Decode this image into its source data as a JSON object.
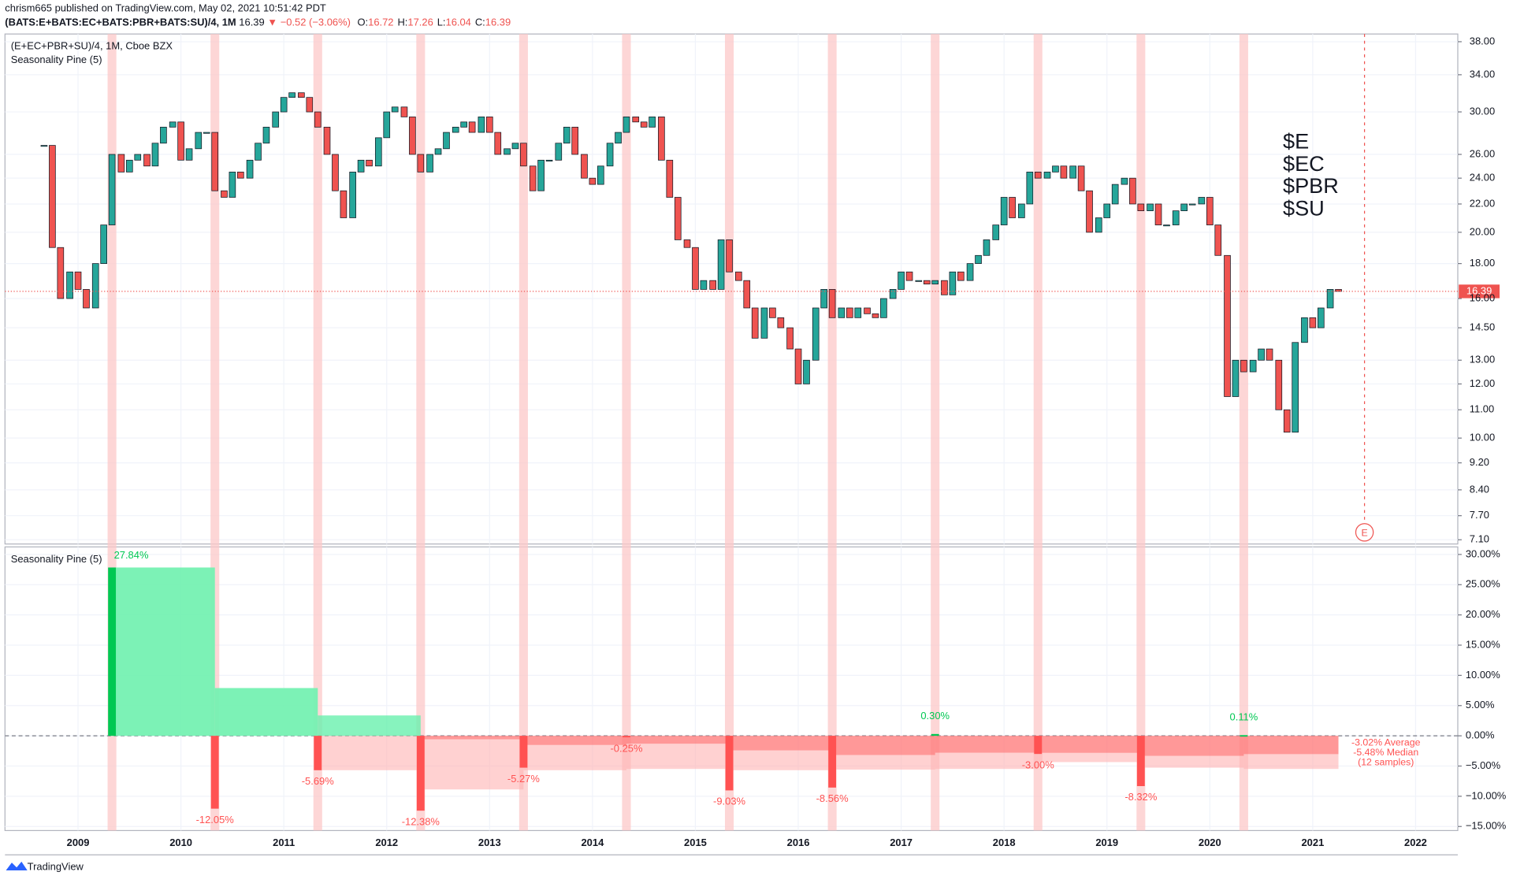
{
  "header": {
    "publisher": "chrism665 published on TradingView.com, May 02, 2021 10:51:42 PDT",
    "symbol": "(BATS:E+BATS:EC+BATS:PBR+BATS:SU)/4, 1M",
    "last": "16.39",
    "change": "▼ −0.52 (−3.06%)",
    "ohlc": [
      {
        "label": "O:",
        "value": "16.72"
      },
      {
        "label": "H:",
        "value": "17.26"
      },
      {
        "label": "L:",
        "value": "16.04"
      },
      {
        "label": "C:",
        "value": "16.39"
      }
    ]
  },
  "chart_data": [
    {
      "type": "candlestick",
      "legend": "(E+EC+PBR+SU)/4, 1M, Cboe BZX",
      "indicator": "Seasonality Pine (5)",
      "log_scale": true,
      "up_color": "#26a69a",
      "down_color": "#ef5350",
      "xlim": [
        2008.29,
        2022.41
      ],
      "ylim": [
        7.0,
        39.0
      ],
      "yticks": [
        {
          "value": 38,
          "label": "38.00"
        },
        {
          "value": 34,
          "label": "34.00"
        },
        {
          "value": 30,
          "label": "30.00"
        },
        {
          "value": 26,
          "label": "26.00"
        },
        {
          "value": 24,
          "label": "24.00"
        },
        {
          "value": 22,
          "label": "22.00"
        },
        {
          "value": 20,
          "label": "20.00"
        },
        {
          "value": 18,
          "label": "18.00"
        },
        {
          "value": 16,
          "label": "16.00"
        },
        {
          "value": 14.5,
          "label": "14.50"
        },
        {
          "value": 13,
          "label": "13.00"
        },
        {
          "value": 12,
          "label": "12.00"
        },
        {
          "value": 11,
          "label": "11.00"
        },
        {
          "value": 10,
          "label": "10.00"
        },
        {
          "value": 9.2,
          "label": "9.20"
        },
        {
          "value": 8.4,
          "label": "8.40"
        },
        {
          "value": 7.7,
          "label": "7.70"
        },
        {
          "value": 7.1,
          "label": "7.10"
        }
      ],
      "x": [
        2008.67,
        2008.75,
        2008.83,
        2008.92,
        2009.0,
        2009.08,
        2009.17,
        2009.25,
        2009.33,
        2009.42,
        2009.5,
        2009.58,
        2009.67,
        2009.75,
        2009.83,
        2009.92,
        2010.0,
        2010.08,
        2010.17,
        2010.25,
        2010.33,
        2010.42,
        2010.5,
        2010.58,
        2010.67,
        2010.75,
        2010.83,
        2010.92,
        2011.0,
        2011.08,
        2011.17,
        2011.25,
        2011.33,
        2011.42,
        2011.5,
        2011.58,
        2011.67,
        2011.75,
        2011.83,
        2011.92,
        2012.0,
        2012.08,
        2012.17,
        2012.25,
        2012.33,
        2012.42,
        2012.5,
        2012.58,
        2012.67,
        2012.75,
        2012.83,
        2012.92,
        2013.0,
        2013.08,
        2013.17,
        2013.25,
        2013.33,
        2013.42,
        2013.5,
        2013.58,
        2013.67,
        2013.75,
        2013.83,
        2013.92,
        2014.0,
        2014.08,
        2014.17,
        2014.25,
        2014.33,
        2014.42,
        2014.5,
        2014.58,
        2014.67,
        2014.75,
        2014.83,
        2014.92,
        2015.0,
        2015.08,
        2015.17,
        2015.25,
        2015.33,
        2015.42,
        2015.5,
        2015.58,
        2015.67,
        2015.75,
        2015.83,
        2015.92,
        2016.0,
        2016.08,
        2016.17,
        2016.25,
        2016.33,
        2016.42,
        2016.5,
        2016.58,
        2016.67,
        2016.75,
        2016.83,
        2016.92,
        2017.0,
        2017.08,
        2017.17,
        2017.25,
        2017.33,
        2017.42,
        2017.5,
        2017.58,
        2017.67,
        2017.75,
        2017.83,
        2017.92,
        2018.0,
        2018.08,
        2018.17,
        2018.25,
        2018.33,
        2018.42,
        2018.5,
        2018.58,
        2018.67,
        2018.75,
        2018.83,
        2018.92,
        2019.0,
        2019.08,
        2019.17,
        2019.25,
        2019.33,
        2019.42,
        2019.5,
        2019.58,
        2019.67,
        2019.75,
        2019.83,
        2019.92,
        2020.0,
        2020.08,
        2020.17,
        2020.25,
        2020.33,
        2020.42,
        2020.5,
        2020.58,
        2020.67,
        2020.75,
        2020.83,
        2020.92,
        2021.0,
        2021.08,
        2021.17,
        2021.25
      ],
      "close": [
        26.8,
        19.0,
        16.0,
        17.5,
        16.5,
        15.5,
        18.0,
        20.5,
        26.0,
        24.5,
        25.5,
        26.0,
        25.0,
        27.0,
        28.5,
        29.0,
        25.5,
        26.5,
        28.0,
        28.0,
        23.0,
        22.5,
        24.5,
        24.0,
        25.5,
        27.0,
        28.5,
        30.0,
        31.5,
        32.0,
        31.5,
        30.0,
        28.5,
        26.0,
        23.0,
        21.0,
        24.5,
        25.5,
        25.0,
        27.5,
        30.0,
        30.5,
        29.5,
        26.0,
        24.5,
        26.0,
        26.5,
        28.0,
        28.5,
        29.0,
        28.0,
        29.5,
        28.0,
        26.0,
        26.5,
        27.0,
        25.0,
        23.0,
        25.5,
        25.5,
        27.0,
        28.5,
        26.0,
        24.0,
        23.5,
        25.0,
        27.0,
        28.0,
        29.5,
        29.0,
        28.5,
        29.5,
        25.5,
        22.5,
        19.5,
        19.0,
        16.5,
        17.0,
        16.5,
        19.5,
        17.5,
        17.0,
        15.5,
        14.0,
        15.5,
        15.0,
        14.5,
        13.5,
        12.0,
        13.0,
        15.5,
        16.5,
        15.0,
        15.5,
        15.0,
        15.5,
        15.2,
        15.0,
        16.0,
        16.5,
        17.5,
        17.0,
        17.0,
        16.8,
        17.0,
        16.2,
        17.5,
        17.0,
        18.0,
        18.5,
        19.5,
        20.5,
        22.5,
        21.0,
        22.0,
        24.5,
        24.0,
        24.5,
        25.0,
        24.0,
        25.0,
        23.0,
        20.0,
        21.0,
        22.0,
        23.5,
        24.0,
        22.0,
        21.5,
        22.0,
        20.5,
        20.5,
        21.5,
        22.0,
        22.0,
        22.5,
        20.5,
        18.5,
        11.5,
        13.0,
        12.5,
        13.0,
        13.5,
        13.0,
        11.0,
        10.2,
        13.8,
        15.0,
        14.5,
        15.5,
        16.5,
        16.39
      ]
    },
    {
      "type": "bar",
      "title": "Seasonality Pine (5)",
      "xlim": [
        2008.29,
        2022.41
      ],
      "ylim": [
        -15.67,
        31.25
      ],
      "xticks": [
        2009,
        2010,
        2011,
        2012,
        2013,
        2014,
        2015,
        2016,
        2017,
        2018,
        2019,
        2020,
        2021,
        2022
      ],
      "yticks": [
        {
          "value": 30,
          "label": "30.00%"
        },
        {
          "value": 25,
          "label": "25.00%"
        },
        {
          "value": 20,
          "label": "20.00%"
        },
        {
          "value": 15,
          "label": "15.00%"
        },
        {
          "value": 10,
          "label": "10.00%"
        },
        {
          "value": 5,
          "label": "5.00%"
        },
        {
          "value": 0,
          "label": "0.00%"
        },
        {
          "value": -5,
          "label": "−5.00%"
        },
        {
          "value": -10,
          "label": "−10.00%"
        },
        {
          "value": -15,
          "label": "−15.00%"
        }
      ],
      "x": [
        2009.33,
        2010.33,
        2011.33,
        2012.33,
        2013.33,
        2014.33,
        2015.33,
        2016.33,
        2017.33,
        2018.33,
        2019.33,
        2020.33
      ],
      "values": [
        27.84,
        -12.05,
        -5.69,
        -12.38,
        -5.27,
        -0.25,
        -9.03,
        -8.56,
        0.3,
        -3.0,
        -8.32,
        0.11
      ],
      "value_labels": [
        "27.84%",
        "-12.05%",
        "-5.69%",
        "-12.38%",
        "-5.27%",
        "-0.25%",
        "-9.03%",
        "-8.56%",
        "0.30%",
        "-3.00%",
        "-8.32%",
        "0.11%"
      ],
      "series": [
        {
          "name": "Average",
          "color": "#ff5252",
          "values": [
            27.84,
            7.9,
            3.37,
            -0.57,
            -1.51,
            -1.3,
            -2.4,
            -3.17,
            -2.79,
            -2.81,
            -3.31,
            -3.02
          ]
        },
        {
          "name": "Median",
          "color": "#ffb3b3",
          "values": [
            27.84,
            7.9,
            -5.69,
            -8.87,
            -5.69,
            -5.48,
            -5.69,
            -5.59,
            -5.48,
            -4.35,
            -5.27,
            -5.48
          ]
        }
      ],
      "summary": [
        "-3.02% Average",
        "-5.48% Median",
        "(12 samples)"
      ]
    }
  ],
  "annotation": [
    "$E",
    "$EC",
    "$PBR",
    "$SU"
  ],
  "earnings_marker": "E",
  "footer": "TradingView"
}
